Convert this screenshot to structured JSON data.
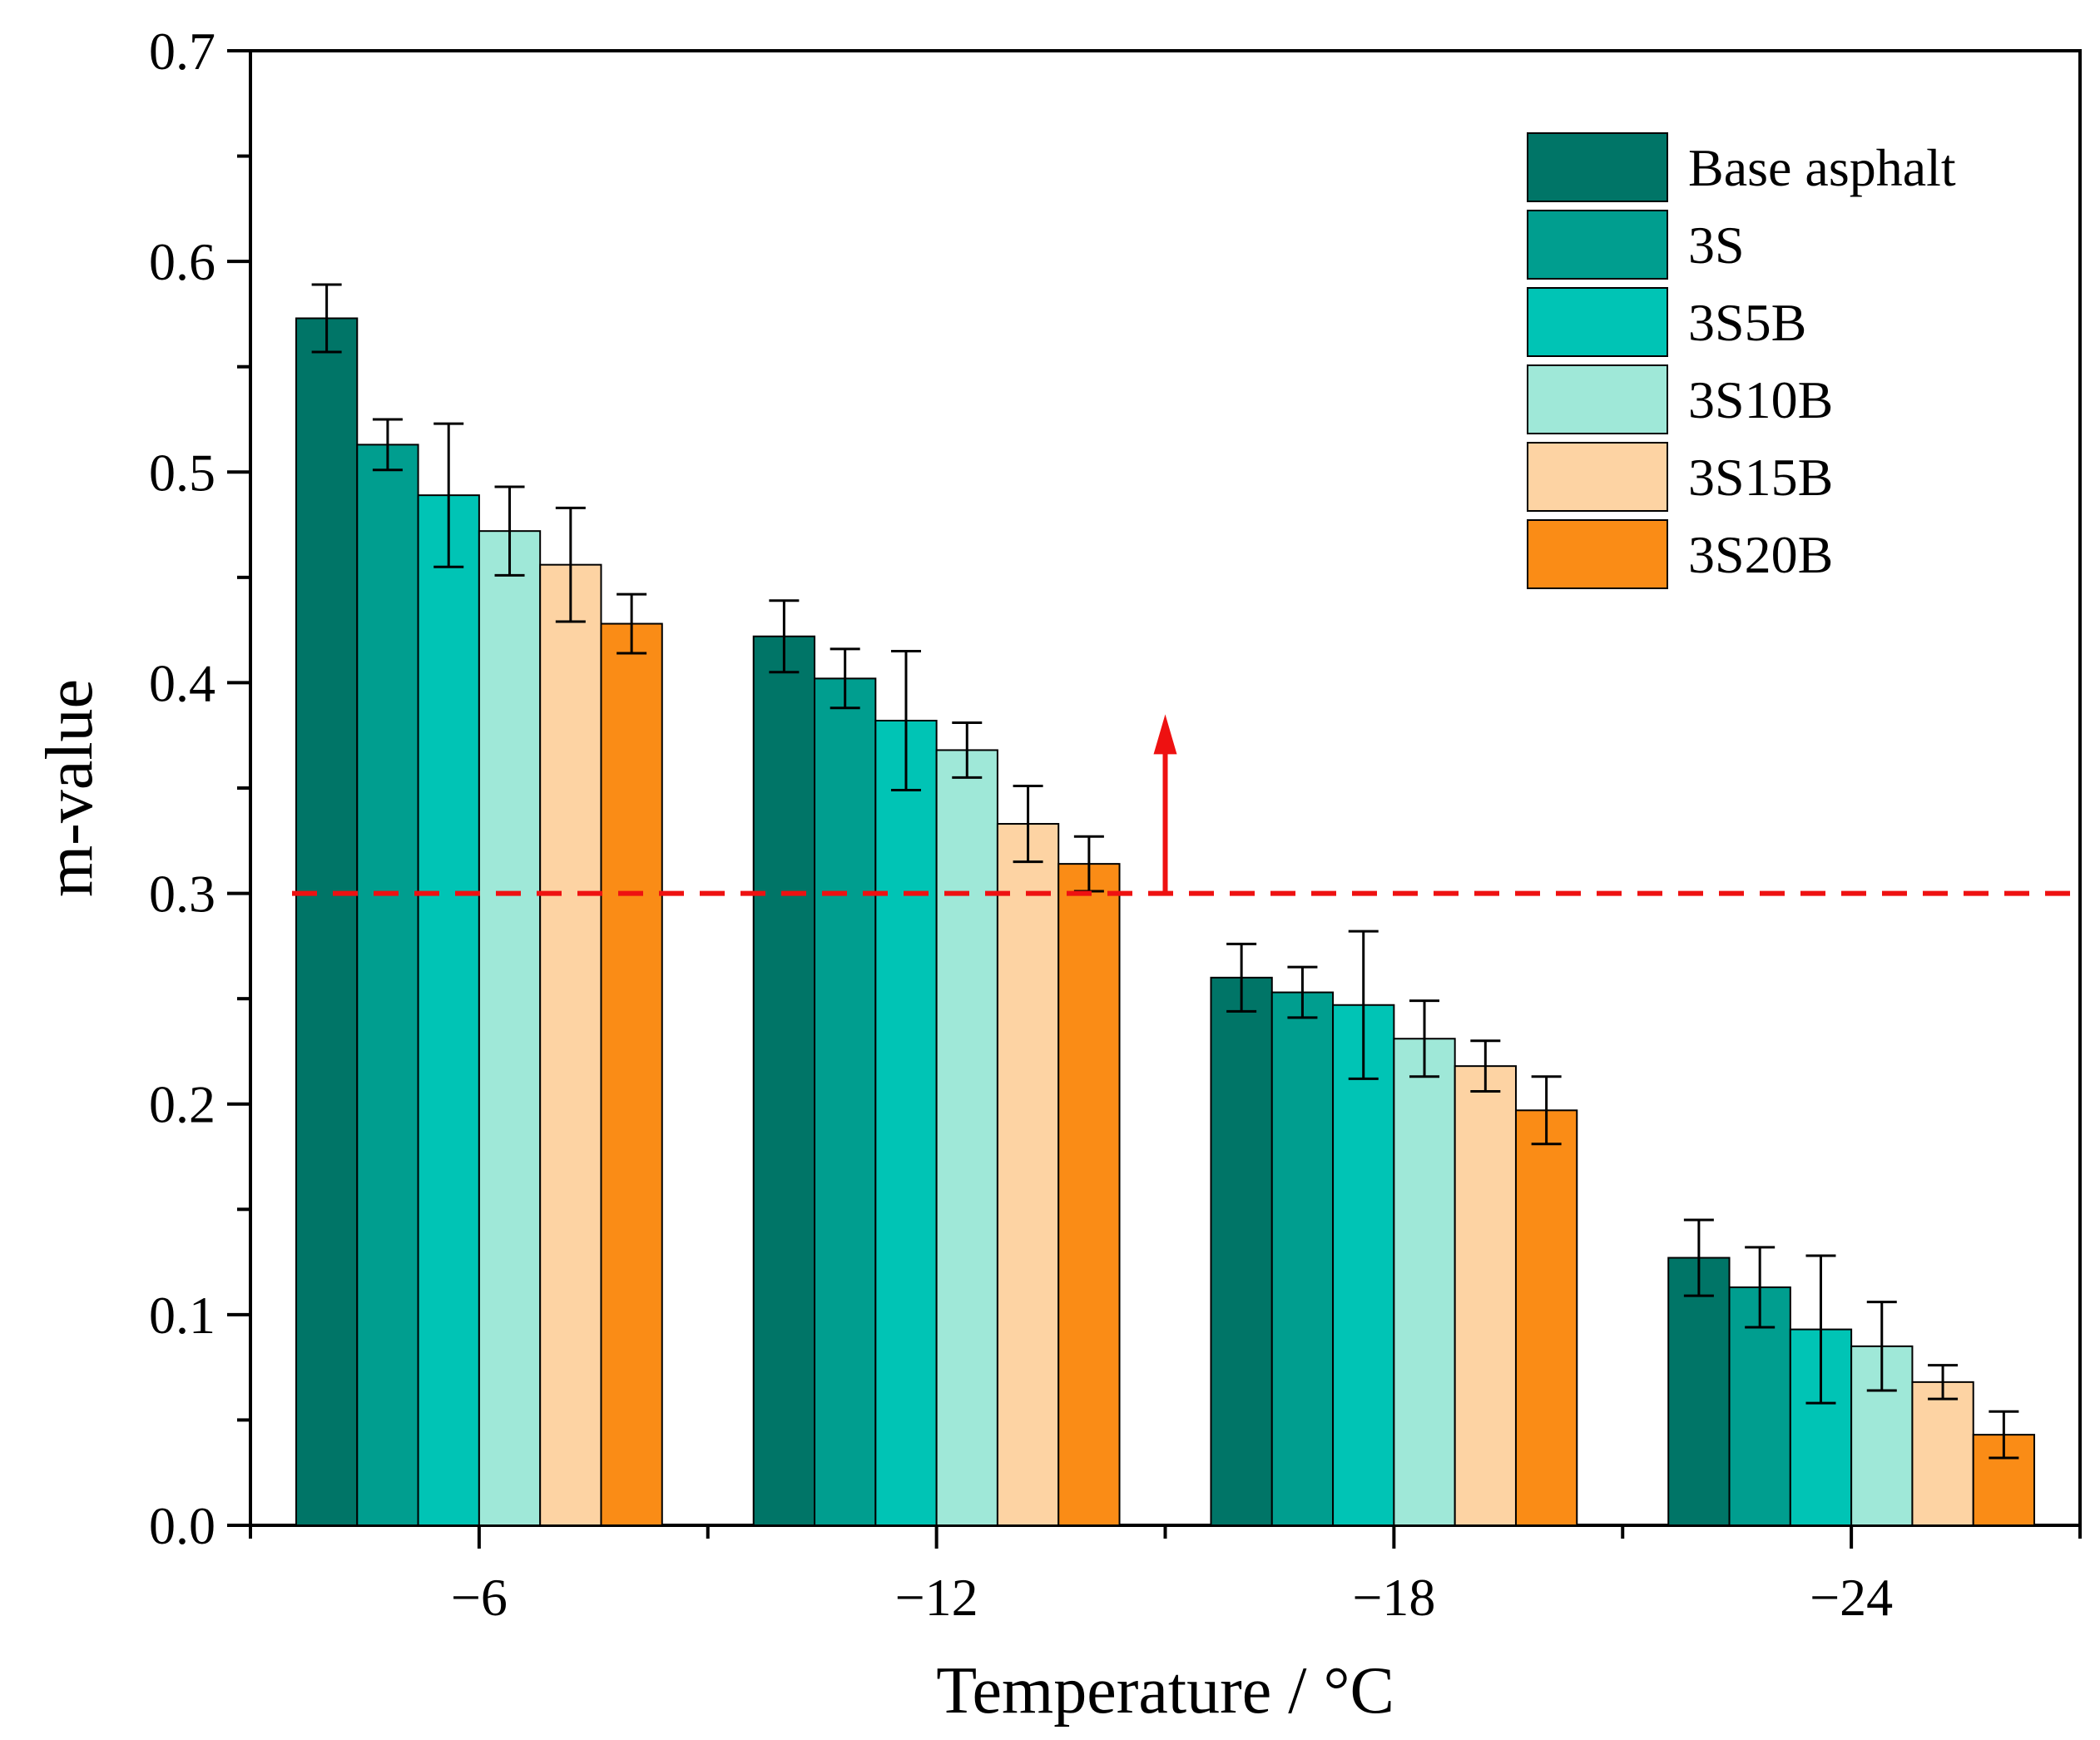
{
  "chart_data": {
    "type": "bar",
    "title": "",
    "xlabel": "Temperature / °C",
    "ylabel": "m-value",
    "ylim": [
      0,
      0.7
    ],
    "yticks": [
      0.0,
      0.1,
      0.2,
      0.3,
      0.4,
      0.5,
      0.6,
      0.7
    ],
    "ytick_labels": [
      "0.0",
      "0.1",
      "0.2",
      "0.3",
      "0.4",
      "0.5",
      "0.6",
      "0.7"
    ],
    "categories": [
      "−6",
      "−12",
      "−18",
      "−24"
    ],
    "series": [
      {
        "name": "Base asphalt",
        "color": "#007567",
        "values": [
          0.573,
          0.422,
          0.26,
          0.127
        ],
        "errors": [
          0.016,
          0.017,
          0.016,
          0.018
        ]
      },
      {
        "name": "3S",
        "color": "#009E8F",
        "values": [
          0.513,
          0.402,
          0.253,
          0.113
        ],
        "errors": [
          0.012,
          0.014,
          0.012,
          0.019
        ]
      },
      {
        "name": "3S5B",
        "color": "#00C4B5",
        "values": [
          0.489,
          0.382,
          0.247,
          0.093
        ],
        "errors": [
          0.034,
          0.033,
          0.035,
          0.035
        ]
      },
      {
        "name": "3S10B",
        "color": "#9FE8D8",
        "values": [
          0.472,
          0.368,
          0.231,
          0.085
        ],
        "errors": [
          0.021,
          0.013,
          0.018,
          0.021
        ]
      },
      {
        "name": "3S15B",
        "color": "#FDD3A3",
        "values": [
          0.456,
          0.333,
          0.218,
          0.068
        ],
        "errors": [
          0.027,
          0.018,
          0.012,
          0.008
        ]
      },
      {
        "name": "3S20B",
        "color": "#FA8C16",
        "values": [
          0.428,
          0.314,
          0.197,
          0.043
        ],
        "errors": [
          0.014,
          0.013,
          0.016,
          0.011
        ]
      }
    ],
    "reference_line": {
      "y": 0.3,
      "color": "#EE1111",
      "style": "dashed"
    },
    "arrow": {
      "x_between": [
        "−12",
        "−18"
      ],
      "from_y": 0.3,
      "to_y": 0.385,
      "color": "#EE1111"
    },
    "legend": {
      "position": "top-right"
    },
    "grid": false
  }
}
